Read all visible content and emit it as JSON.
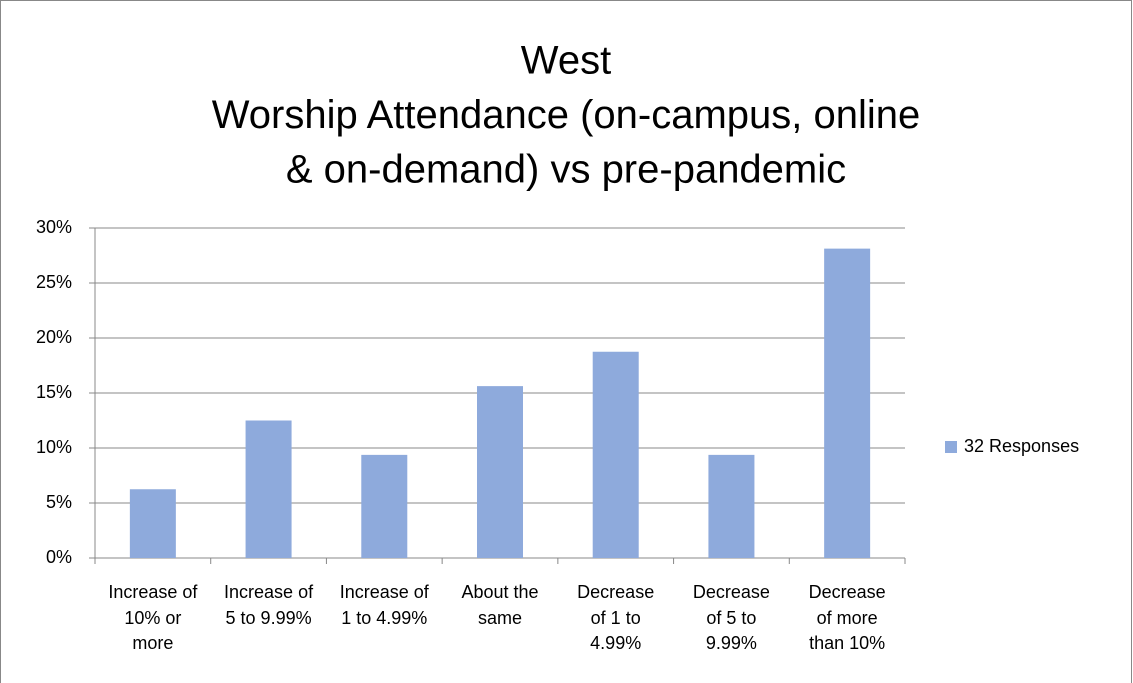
{
  "chart_data": {
    "type": "bar",
    "title": [
      "West",
      "Worship Attendance (on-campus, online",
      "& on-demand) vs pre-pandemic"
    ],
    "categories": [
      "Increase of 10% or more",
      "Increase of 5 to 9.99%",
      "Increase of 1 to 4.99%",
      "About the same",
      "Decrease of 1 to 4.99%",
      "Decrease of 5 to 9.99%",
      "Decrease of more than 10%"
    ],
    "series": [
      {
        "name": "32 Responses",
        "color": "#8eaadc",
        "values": [
          6.25,
          12.5,
          9.375,
          15.625,
          18.75,
          9.375,
          28.125
        ]
      }
    ],
    "ylim": [
      0,
      30
    ],
    "yticks": [
      {
        "value": 0,
        "label": "0%"
      },
      {
        "value": 5,
        "label": "5%"
      },
      {
        "value": 10,
        "label": "10%"
      },
      {
        "value": 15,
        "label": "15%"
      },
      {
        "value": 20,
        "label": "20%"
      },
      {
        "value": 25,
        "label": "25%"
      },
      {
        "value": 30,
        "label": "30%"
      }
    ],
    "grid": true,
    "legend": "right"
  }
}
